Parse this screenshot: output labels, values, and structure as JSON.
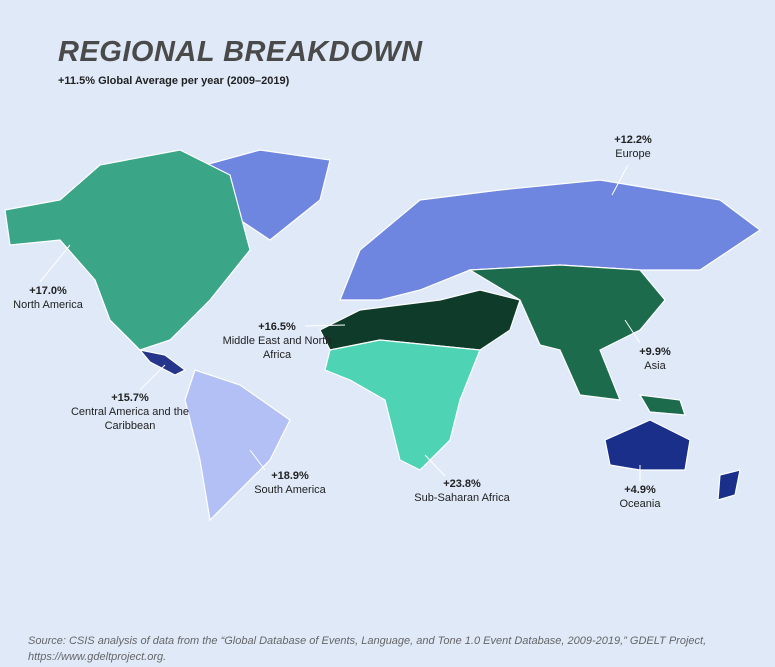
{
  "title": "REGIONAL BREAKDOWN",
  "subtitle": "+11.5% Global Average per year (2009–2019)",
  "regions": [
    {
      "change": "+12.2%",
      "name": "Europe",
      "color": "#6f86e0"
    },
    {
      "change": "+17.0%",
      "name": "North America",
      "color": "#3aa587"
    },
    {
      "change": "+16.5%",
      "name": "Middle East and North Africa",
      "color": "#0f3b2a"
    },
    {
      "change": "+15.7%",
      "name": "Central America and the Caribbean",
      "color": "#26358c"
    },
    {
      "change": "+18.9%",
      "name": "South America",
      "color": "#b3c0f5"
    },
    {
      "change": "+23.8%",
      "name": "Sub-Saharan Africa",
      "color": "#4fd3b5"
    },
    {
      "change": "+9.9%",
      "name": "Asia",
      "color": "#1b6b4c"
    },
    {
      "change": "+4.9%",
      "name": "Oceania",
      "color": "#1a2f8a"
    }
  ],
  "source": "Source: CSIS analysis of data from the “Global Database of Events, Language, and Tone 1.0 Event Database, 2009-2019,” GDELT Project, https://www.gdeltproject.org."
}
